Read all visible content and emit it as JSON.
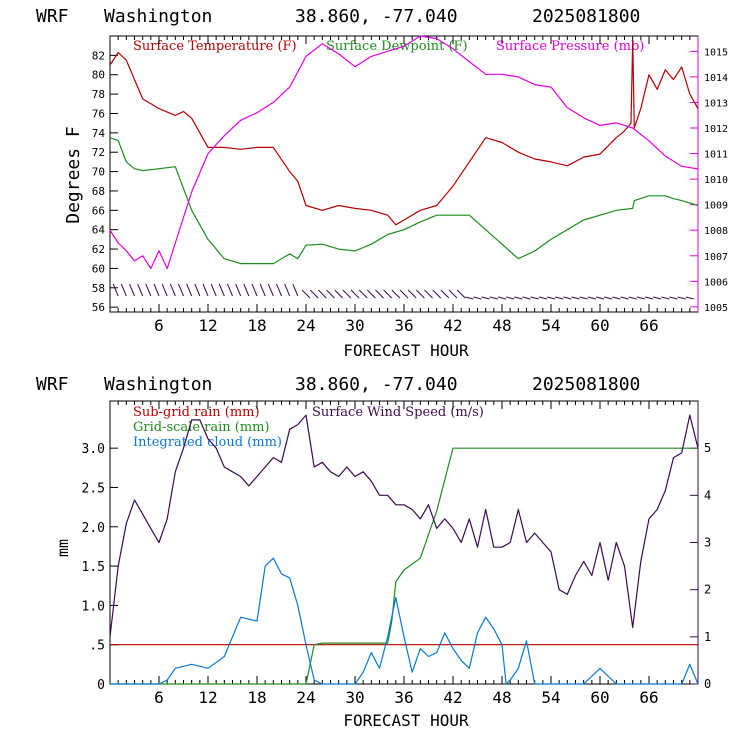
{
  "charts": [
    {
      "header": {
        "model": "WRF",
        "location": "Washington",
        "coords": "38.860, -77.040",
        "run": "2025081800"
      },
      "xlabel": "FORECAST HOUR",
      "ylabel_left": "Degrees F",
      "ylabel_right": "",
      "x_ticks": [
        "6",
        "12",
        "18",
        "24",
        "30",
        "36",
        "42",
        "48",
        "54",
        "60",
        "66"
      ],
      "left_ticks": [
        "56",
        "58",
        "60",
        "62",
        "64",
        "66",
        "68",
        "70",
        "72",
        "74",
        "76",
        "78",
        "80",
        "82"
      ],
      "right_ticks": [
        "1005",
        "1006",
        "1007",
        "1008",
        "1009",
        "1010",
        "1011",
        "1012",
        "1013",
        "1014",
        "1015"
      ],
      "legend": [
        "Surface Temperature (F)",
        "Surface Dewpoint (F)",
        "Surface Pressure (mb)"
      ]
    },
    {
      "header": {
        "model": "WRF",
        "location": "Washington",
        "coords": "38.860, -77.040",
        "run": "2025081800"
      },
      "xlabel": "FORECAST HOUR",
      "ylabel_left": "mm",
      "ylabel_right": "",
      "x_ticks": [
        "6",
        "12",
        "18",
        "24",
        "30",
        "36",
        "42",
        "48",
        "54",
        "60",
        "66"
      ],
      "left_ticks": [
        "0",
        "0.5",
        "1.0",
        "1.5",
        "2.0",
        "2.5",
        "3.0"
      ],
      "left_tick_labels": [
        "0",
        ".5",
        "1.0",
        "1.5",
        "2.0",
        "2.5",
        "3.0"
      ],
      "right_ticks": [
        "0",
        "1",
        "2",
        "3",
        "4",
        "5"
      ],
      "legend": [
        "Sub-grid rain (mm)",
        "Grid-scale rain (mm)",
        "Integrated cloud (mm)",
        "Surface Wind Speed (m/s)"
      ]
    }
  ],
  "colors": {
    "temperature": "#b40000",
    "dewpoint": "#1e8c1e",
    "pressure": "#e100e1",
    "subgrid_rain": "#b40000",
    "gridscale_rain": "#1e8c1e",
    "cloud": "#0a78d2",
    "wind": "#3c0a50",
    "axis_left": "#000000",
    "axis_right": "#3c0a50",
    "axis_right_top": "#e100e1"
  },
  "chart_data": [
    {
      "type": "line",
      "x_range": [
        0,
        72
      ],
      "ylim": [
        55.5,
        84
      ],
      "y2lim": [
        1004.8,
        1015.6
      ],
      "series": [
        {
          "name": "Surface Temperature (F)",
          "axis": "left",
          "x": [
            0,
            1,
            2,
            3,
            4,
            6,
            8,
            9,
            10,
            12,
            14,
            16,
            18,
            20,
            22,
            23,
            24,
            26,
            28,
            30,
            32,
            34,
            35,
            36,
            38,
            40,
            42,
            44,
            46,
            48,
            50,
            52,
            54,
            56,
            58,
            60,
            62,
            63,
            63.8,
            64,
            64.2,
            65,
            66,
            67,
            68,
            69,
            70,
            71,
            72
          ],
          "y": [
            81,
            82.3,
            81.5,
            79.5,
            77.5,
            76.5,
            75.8,
            76.2,
            75.5,
            72.5,
            72.5,
            72.3,
            72.5,
            72.5,
            70,
            69,
            66.5,
            66,
            66.5,
            66.2,
            66,
            65.5,
            64.5,
            65,
            66,
            66.5,
            68.5,
            71,
            73.5,
            73,
            72,
            71.3,
            71,
            70.6,
            71.5,
            71.8,
            73.5,
            74.2,
            75,
            83.5,
            74.5,
            76.5,
            80,
            78.5,
            80.5,
            79.5,
            80.8,
            78,
            76.5
          ]
        },
        {
          "name": "Surface Dewpoint (F)",
          "axis": "left",
          "x": [
            0,
            1,
            2,
            3,
            4,
            6,
            8,
            10,
            12,
            14,
            16,
            18,
            20,
            22,
            23,
            24,
            26,
            28,
            30,
            32,
            34,
            36,
            38,
            40,
            42,
            44,
            46,
            48,
            50,
            52,
            54,
            56,
            58,
            60,
            62,
            64,
            64.2,
            66,
            68,
            69,
            70,
            72
          ],
          "y": [
            73.5,
            73.2,
            71,
            70.3,
            70.1,
            70.3,
            70.5,
            66,
            63,
            61,
            60.5,
            60.5,
            60.5,
            61.5,
            61,
            62.4,
            62.5,
            62,
            61.8,
            62.5,
            63.5,
            64,
            64.8,
            65.5,
            65.5,
            65.5,
            64,
            62.5,
            61,
            61.8,
            63,
            64,
            65,
            65.5,
            66,
            66.2,
            67,
            67.5,
            67.5,
            67.2,
            67,
            66.5
          ]
        },
        {
          "name": "Surface Pressure (mb)",
          "axis": "right",
          "x": [
            0,
            1,
            2,
            3,
            4,
            5,
            6,
            7,
            8,
            10,
            12,
            14,
            16,
            18,
            20,
            22,
            24,
            26,
            28,
            30,
            32,
            34,
            36,
            38,
            40,
            42,
            44,
            46,
            48,
            50,
            52,
            54,
            56,
            58,
            60,
            62,
            64,
            66,
            68,
            70,
            72
          ],
          "y2": [
            1008,
            1007.5,
            1007.2,
            1006.8,
            1007,
            1006.5,
            1007.2,
            1006.5,
            1007.5,
            1009.5,
            1011,
            1011.7,
            1012.3,
            1012.6,
            1013,
            1013.6,
            1014.8,
            1015.3,
            1014.9,
            1014.4,
            1014.8,
            1015,
            1015.2,
            1015.6,
            1015.5,
            1015.1,
            1014.6,
            1014.1,
            1014.1,
            1014,
            1013.7,
            1013.6,
            1012.8,
            1012.4,
            1012.1,
            1012.2,
            1012,
            1011.5,
            1010.9,
            1010.5,
            1010.4
          ]
        }
      ]
    },
    {
      "type": "line",
      "x_range": [
        0,
        72
      ],
      "ylim": [
        0,
        3.6
      ],
      "y2lim": [
        0,
        6
      ],
      "series": [
        {
          "name": "Sub-grid rain (mm)",
          "axis": "left",
          "x": [
            0,
            72
          ],
          "y": [
            0.5,
            0.5
          ]
        },
        {
          "name": "Grid-scale rain (mm)",
          "axis": "left",
          "x": [
            0,
            24,
            25,
            26,
            34,
            34.5,
            35,
            36,
            38,
            39,
            40,
            41,
            42,
            43,
            72
          ],
          "y": [
            0,
            0,
            0.5,
            0.52,
            0.52,
            0.8,
            1.3,
            1.45,
            1.6,
            1.9,
            2.2,
            2.6,
            3.0,
            3.0,
            3.0
          ]
        },
        {
          "name": "Integrated cloud (mm)",
          "axis": "left",
          "x": [
            0,
            6,
            7,
            8,
            10,
            12,
            14,
            15,
            16,
            18,
            19,
            20,
            21,
            22,
            23,
            24,
            25,
            26,
            28,
            30,
            31,
            32,
            33,
            34,
            35,
            36,
            37,
            38,
            39,
            40,
            41,
            42,
            43,
            44,
            45,
            46,
            47,
            48,
            48.5,
            49,
            50,
            51,
            52,
            53,
            54,
            56,
            58,
            60,
            62,
            64,
            66,
            68,
            70,
            71,
            72
          ],
          "y": [
            0,
            0,
            0.05,
            0.2,
            0.25,
            0.2,
            0.35,
            0.6,
            0.85,
            0.8,
            1.5,
            1.6,
            1.4,
            1.35,
            1.0,
            0.5,
            0.05,
            0,
            0,
            0,
            0.15,
            0.4,
            0.2,
            0.6,
            1.1,
            0.6,
            0.15,
            0.45,
            0.35,
            0.4,
            0.65,
            0.45,
            0.3,
            0.2,
            0.65,
            0.85,
            0.7,
            0.5,
            0,
            0.05,
            0.2,
            0.55,
            0,
            0,
            0,
            0,
            0,
            0.2,
            0,
            0,
            0,
            0,
            0,
            0.25,
            0
          ]
        },
        {
          "name": "Surface Wind Speed (m/s)",
          "axis": "right",
          "x": [
            0,
            1,
            2,
            3,
            4,
            5,
            6,
            7,
            8,
            9,
            10,
            11,
            12,
            13,
            14,
            15,
            16,
            17,
            18,
            19,
            20,
            21,
            22,
            23,
            24,
            25,
            26,
            27,
            28,
            29,
            30,
            31,
            32,
            33,
            34,
            35,
            36,
            37,
            38,
            39,
            40,
            41,
            42,
            43,
            44,
            45,
            46,
            47,
            48,
            49,
            50,
            51,
            52,
            53,
            54,
            55,
            56,
            57,
            58,
            59,
            60,
            61,
            62,
            63,
            64,
            65,
            66,
            67,
            68,
            69,
            70,
            71,
            72
          ],
          "y2": [
            1.0,
            2.5,
            3.4,
            3.9,
            3.6,
            3.3,
            3.0,
            3.5,
            4.5,
            5.0,
            5.6,
            5.6,
            5.2,
            5.0,
            4.6,
            4.5,
            4.4,
            4.2,
            4.4,
            4.6,
            4.8,
            4.7,
            5.4,
            5.5,
            5.7,
            4.6,
            4.7,
            4.5,
            4.4,
            4.6,
            4.4,
            4.5,
            4.3,
            4.0,
            4.0,
            3.8,
            3.8,
            3.7,
            3.5,
            3.8,
            3.3,
            3.5,
            3.3,
            3.0,
            3.5,
            2.9,
            3.7,
            2.9,
            2.9,
            3.0,
            3.7,
            3.0,
            3.2,
            3.0,
            2.8,
            2.0,
            1.9,
            2.3,
            2.6,
            2.3,
            3.0,
            2.2,
            3.0,
            2.5,
            1.2,
            2.6,
            3.5,
            3.7,
            4.1,
            4.8,
            4.9,
            5.7,
            5.0
          ]
        }
      ]
    }
  ]
}
